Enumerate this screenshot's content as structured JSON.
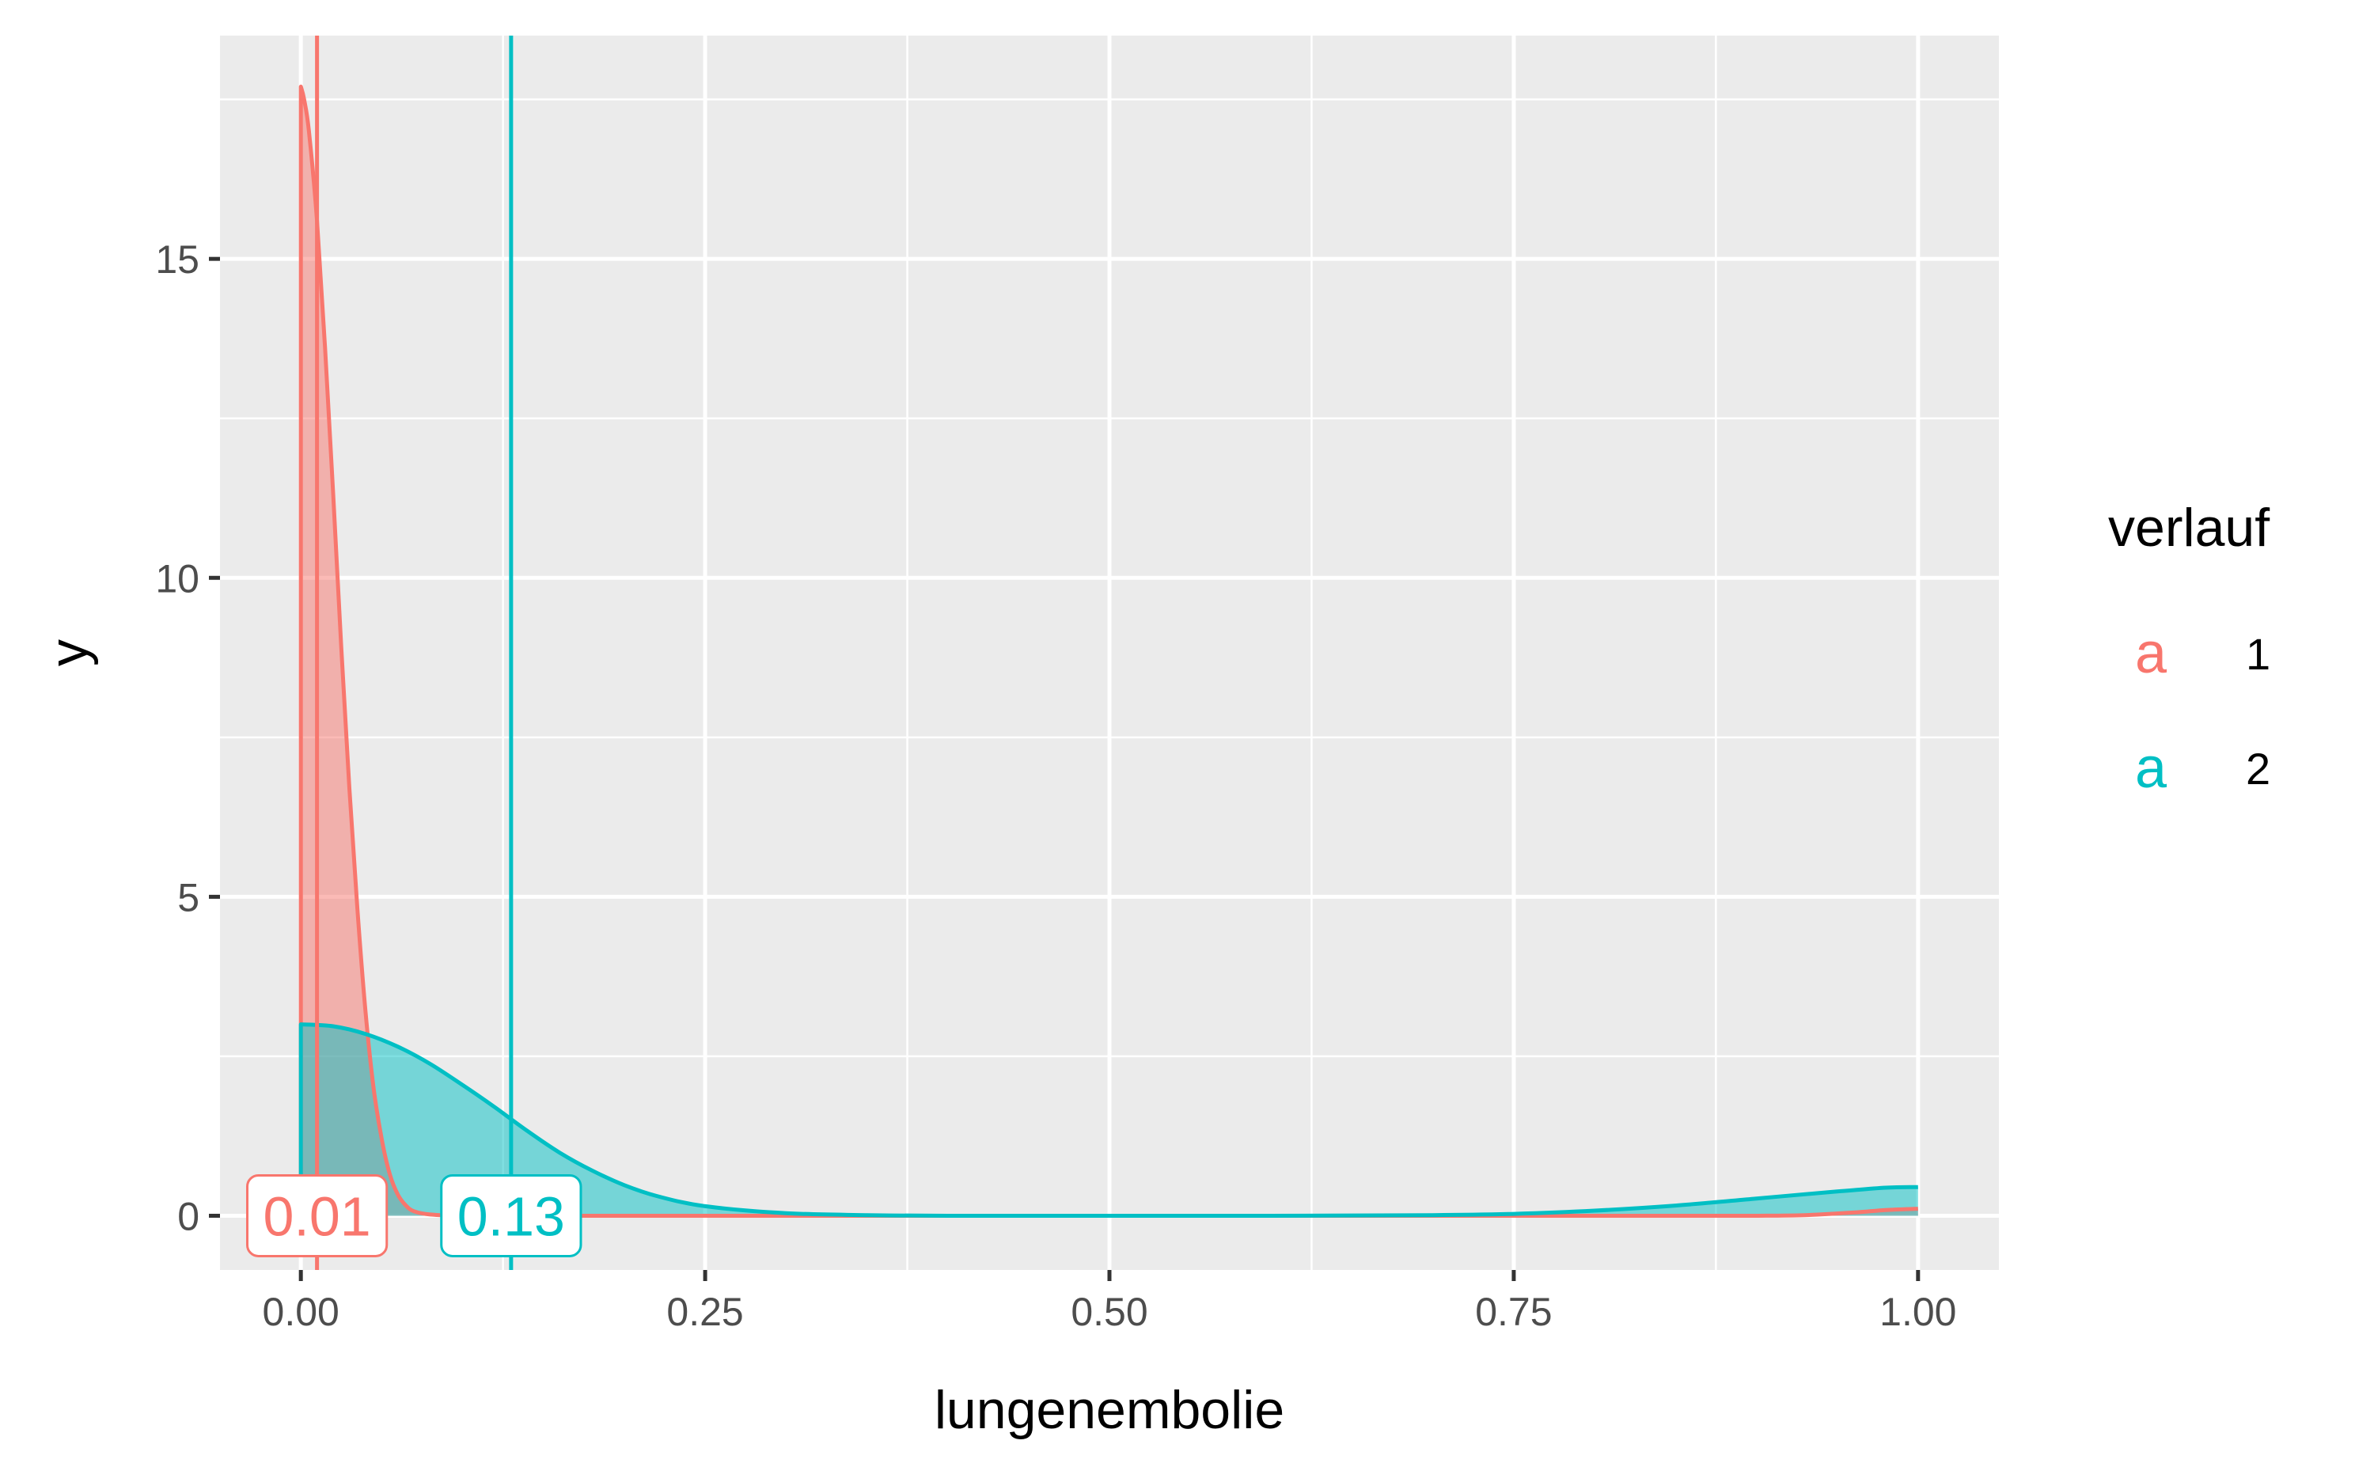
{
  "chart_data": {
    "type": "area",
    "xlabel": "lungenembolie",
    "ylabel": "y",
    "xlim": [
      -0.05,
      1.05
    ],
    "ylim": [
      -0.85,
      18.5
    ],
    "x_ticks": [
      0.0,
      0.25,
      0.5,
      0.75,
      1.0
    ],
    "x_tick_labels": [
      "0.00",
      "0.25",
      "0.50",
      "0.75",
      "1.00"
    ],
    "x_minor_ticks": [
      0.125,
      0.375,
      0.625,
      0.875
    ],
    "y_ticks": [
      0,
      5,
      10,
      15
    ],
    "y_tick_labels": [
      "0",
      "5",
      "10",
      "15"
    ],
    "y_minor_ticks": [
      2.5,
      7.5,
      12.5,
      17.5
    ],
    "grid": true,
    "legend": {
      "title": "verlauf",
      "position": "right",
      "key_glyph": "a"
    },
    "series": [
      {
        "name": "1",
        "color": "#F8766D",
        "x": [
          0.0,
          0.002,
          0.005,
          0.01,
          0.015,
          0.02,
          0.025,
          0.03,
          0.035,
          0.04,
          0.045,
          0.05,
          0.055,
          0.06,
          0.065,
          0.07,
          0.08,
          0.1,
          0.15,
          0.3,
          0.5,
          0.7,
          0.85,
          0.9,
          0.93,
          0.96,
          0.98,
          1.0
        ],
        "y": [
          17.7,
          17.5,
          17.0,
          15.6,
          13.6,
          11.3,
          8.9,
          6.7,
          4.8,
          3.2,
          2.0,
          1.2,
          0.65,
          0.33,
          0.16,
          0.07,
          0.02,
          0.0,
          0.0,
          0.0,
          0.0,
          0.0,
          0.0,
          0.0,
          0.01,
          0.05,
          0.09,
          0.11
        ],
        "mean": 0.01,
        "mean_label": "0.01"
      },
      {
        "name": "2",
        "color": "#00BFC4",
        "x": [
          0.0,
          0.02,
          0.04,
          0.06,
          0.08,
          0.1,
          0.12,
          0.14,
          0.16,
          0.18,
          0.2,
          0.22,
          0.25,
          0.3,
          0.35,
          0.4,
          0.5,
          0.6,
          0.7,
          0.75,
          0.8,
          0.85,
          0.9,
          0.95,
          0.98,
          1.0
        ],
        "y": [
          3.0,
          2.97,
          2.85,
          2.65,
          2.38,
          2.05,
          1.7,
          1.33,
          0.99,
          0.71,
          0.48,
          0.31,
          0.15,
          0.04,
          0.01,
          0.0,
          0.0,
          0.0,
          0.01,
          0.03,
          0.08,
          0.16,
          0.27,
          0.38,
          0.44,
          0.45
        ],
        "mean": 0.13,
        "mean_label": "0.13"
      }
    ]
  }
}
